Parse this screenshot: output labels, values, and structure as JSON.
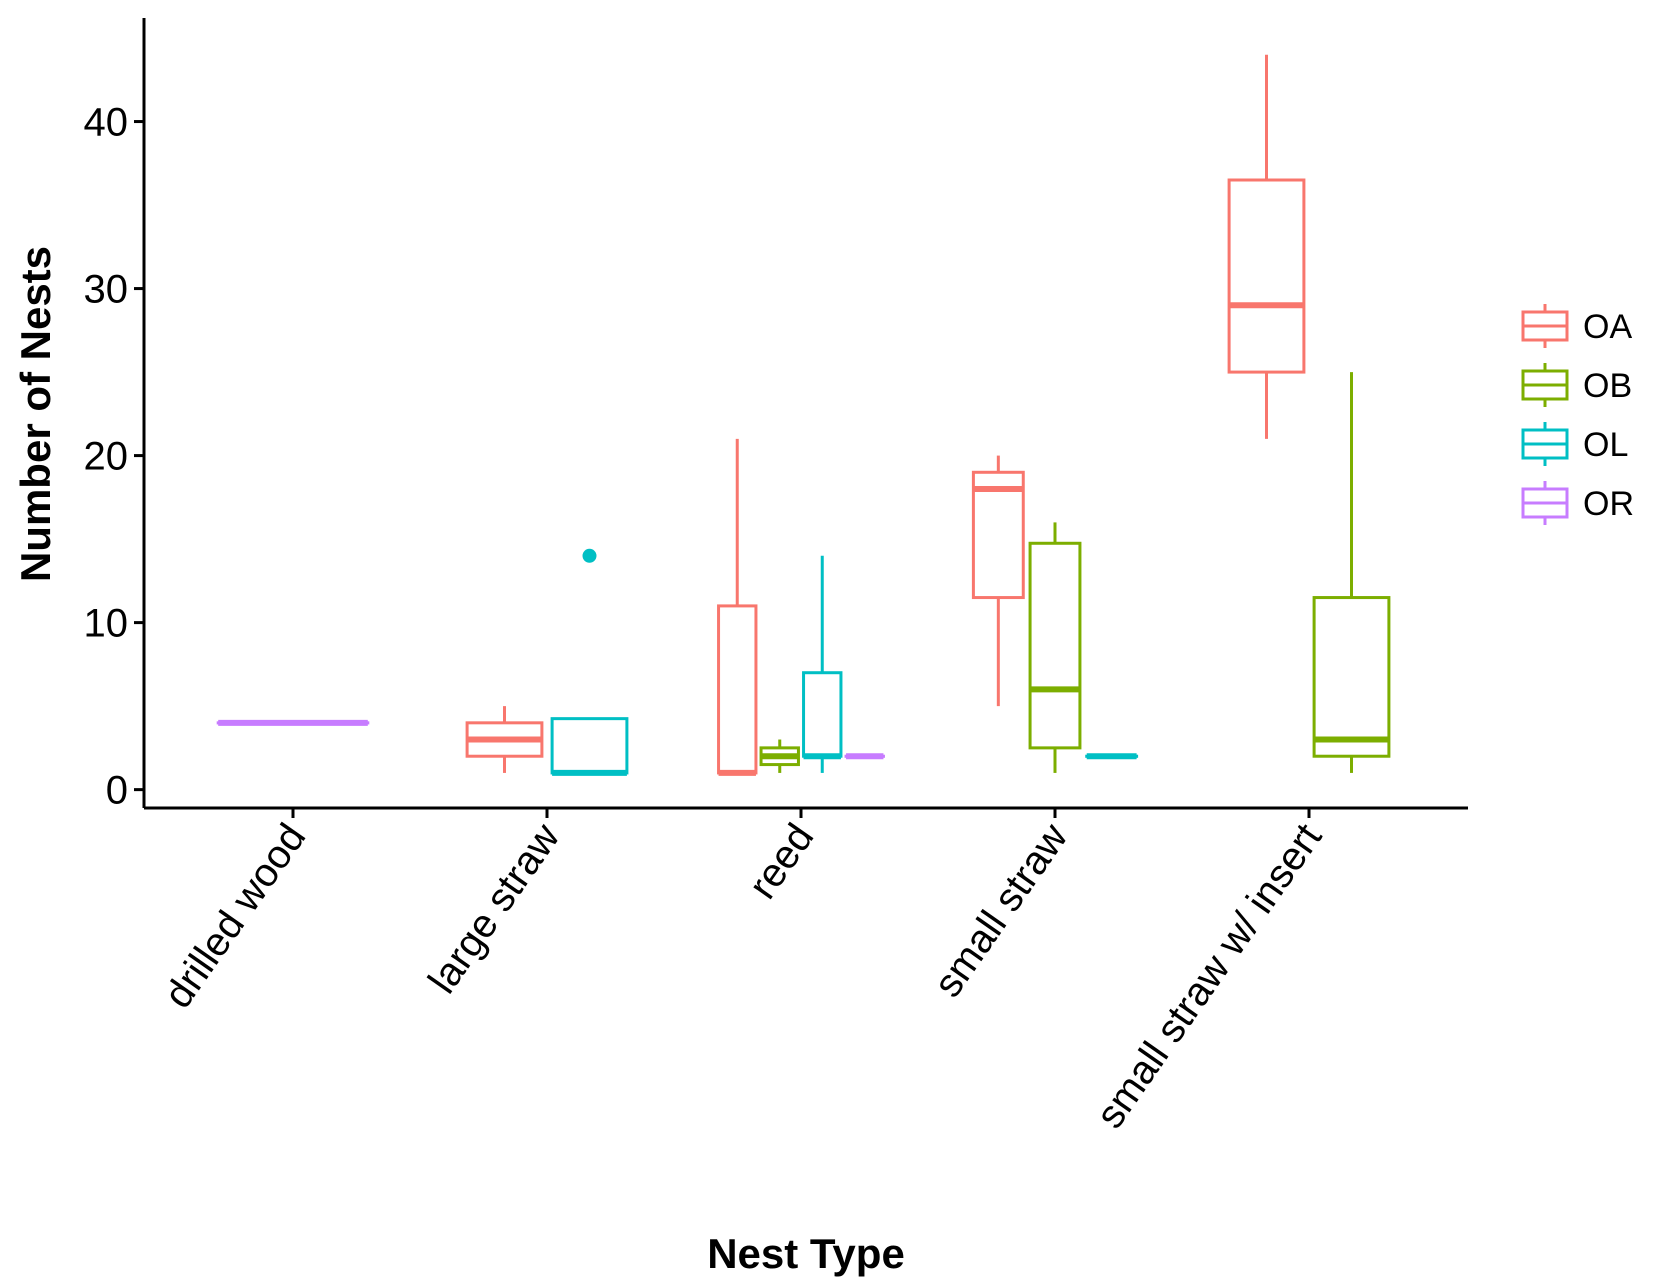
{
  "chart_data": {
    "type": "boxplot",
    "title": "",
    "xlabel": "Nest Type",
    "ylabel": "Number of Nests",
    "ylim": [
      -1.1,
      46.2
    ],
    "yticks": [
      0,
      10,
      20,
      30,
      40
    ],
    "grid": false,
    "legend_position": "right",
    "categories": [
      "drilled wood",
      "large straw",
      "reed",
      "small straw",
      "small straw w/ insert"
    ],
    "groups": [
      "OA",
      "OB",
      "OL",
      "OR"
    ],
    "colors": {
      "OA": "#F8766D",
      "OB": "#7CAE00",
      "OL": "#00BFC4",
      "OR": "#C77CFF"
    },
    "boxes": [
      {
        "category": "drilled wood",
        "group": "OR",
        "slot": 0,
        "slots": 1,
        "min": 4,
        "q1": 4,
        "median": 4,
        "q3": 4,
        "max": 4,
        "outliers": []
      },
      {
        "category": "large straw",
        "group": "OA",
        "slot": 0,
        "slots": 2,
        "min": 1,
        "q1": 2,
        "median": 3,
        "q3": 4,
        "max": 5,
        "outliers": []
      },
      {
        "category": "large straw",
        "group": "OL",
        "slot": 1,
        "slots": 2,
        "min": 1,
        "q1": 1,
        "median": 1,
        "q3": 4.25,
        "max": 4.25,
        "outliers": [
          14
        ]
      },
      {
        "category": "reed",
        "group": "OA",
        "slot": 0,
        "slots": 4,
        "min": 1,
        "q1": 1,
        "median": 1,
        "q3": 11,
        "max": 21,
        "outliers": []
      },
      {
        "category": "reed",
        "group": "OB",
        "slot": 1,
        "slots": 4,
        "min": 1,
        "q1": 1.5,
        "median": 2,
        "q3": 2.5,
        "max": 3,
        "outliers": []
      },
      {
        "category": "reed",
        "group": "OL",
        "slot": 2,
        "slots": 4,
        "min": 1,
        "q1": 2,
        "median": 2,
        "q3": 7,
        "max": 14,
        "outliers": []
      },
      {
        "category": "reed",
        "group": "OR",
        "slot": 3,
        "slots": 4,
        "min": 2,
        "q1": 2,
        "median": 2,
        "q3": 2,
        "max": 2,
        "outliers": []
      },
      {
        "category": "small straw",
        "group": "OA",
        "slot": 0,
        "slots": 3,
        "min": 5,
        "q1": 11.5,
        "median": 18,
        "q3": 19,
        "max": 20,
        "outliers": []
      },
      {
        "category": "small straw",
        "group": "OB",
        "slot": 1,
        "slots": 3,
        "min": 1,
        "q1": 2.5,
        "median": 6,
        "q3": 14.75,
        "max": 16,
        "outliers": []
      },
      {
        "category": "small straw",
        "group": "OL",
        "slot": 2,
        "slots": 3,
        "min": 2,
        "q1": 2,
        "median": 2,
        "q3": 2,
        "max": 2,
        "outliers": []
      },
      {
        "category": "small straw w/ insert",
        "group": "OA",
        "slot": 0,
        "slots": 2,
        "min": 21,
        "q1": 25,
        "median": 29,
        "q3": 36.5,
        "max": 44,
        "outliers": []
      },
      {
        "category": "small straw w/ insert",
        "group": "OB",
        "slot": 1,
        "slots": 2,
        "min": 1,
        "q1": 2,
        "median": 3,
        "q3": 11.5,
        "max": 25,
        "outliers": []
      }
    ]
  }
}
